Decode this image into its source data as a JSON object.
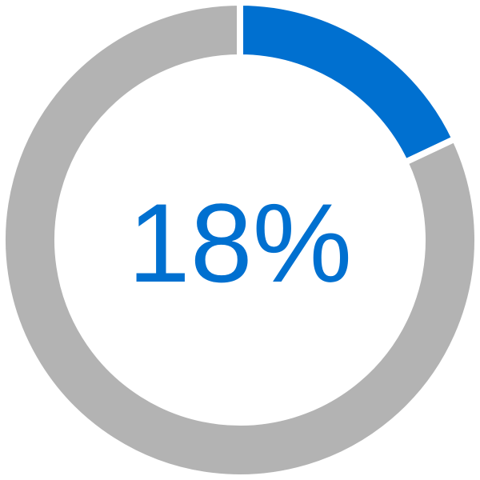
{
  "chart_data": {
    "type": "donut",
    "values": [
      18,
      82
    ],
    "value_labels": [
      "18%",
      null
    ],
    "colors": [
      "#0070d0",
      "#b3b3b3"
    ]
  }
}
